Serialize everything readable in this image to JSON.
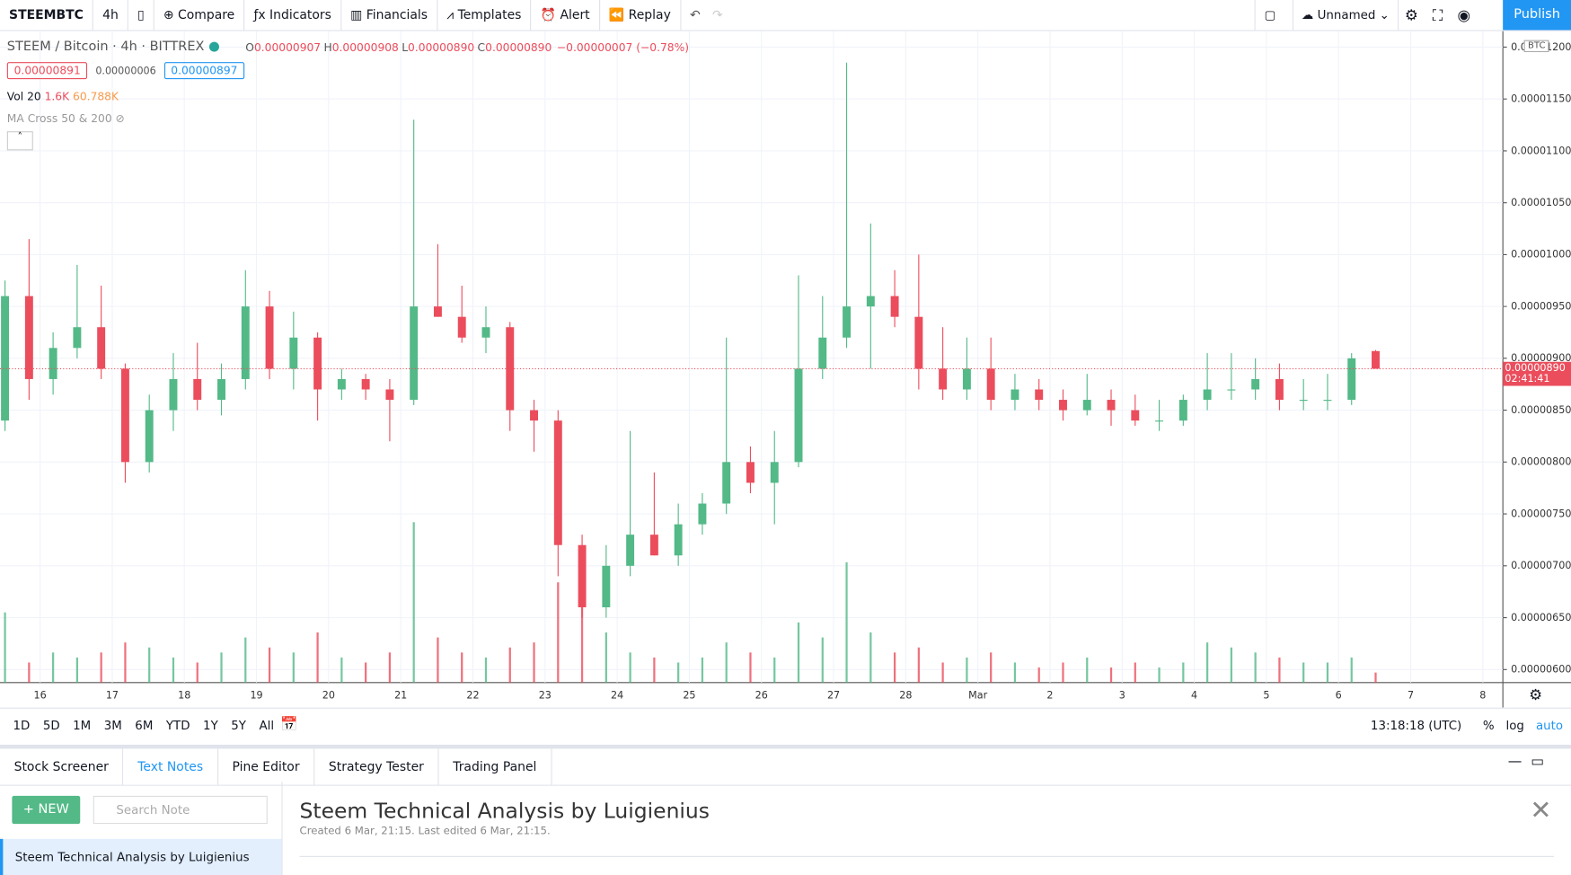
{
  "ui": {
    "toolbar": {
      "symbol": "STEEMBTC",
      "interval": "4h",
      "buttons": [
        "Compare",
        "Indicators",
        "Financials",
        "Templates",
        "Alert",
        "Replay"
      ],
      "layout": "Unnamed",
      "publish": "Publish"
    },
    "legend": {
      "title": "STEEM / Bitcoin · 4h · BITTREX",
      "ohlc": [
        {
          "k": "O",
          "v": "0.00000907"
        },
        {
          "k": "H",
          "v": "0.00000908"
        },
        {
          "k": "L",
          "v": "0.00000890"
        },
        {
          "k": "C",
          "v": "0.00000890"
        }
      ],
      "change": "−0.00000007 (−0.78%)",
      "bid": "0.00000891",
      "spread": "0.00000006",
      "ask": "0.00000897",
      "vol": "Vol 20",
      "vol_now": "1.6K",
      "vol_ma": "60.788K",
      "ma": "MA Cross 50 & 200"
    },
    "price_badge": {
      "price": "0.00000890",
      "countdown": "02:41:41",
      "currency": "BTC"
    },
    "ranges": [
      "1D",
      "5D",
      "1M",
      "3M",
      "6M",
      "YTD",
      "1Y",
      "5Y",
      "All"
    ],
    "clock": "13:18:18 (UTC)",
    "scale_opts": [
      "%",
      "log",
      "auto"
    ],
    "tabs": [
      "Stock Screener",
      "Text Notes",
      "Pine Editor",
      "Strategy Tester",
      "Trading Panel"
    ],
    "notes": {
      "new": "NEW",
      "search": "Search Note",
      "item": "Steem Technical Analysis by Luigienius",
      "title": "Steem Technical Analysis by Luigienius",
      "meta": "Created 6 Mar, 21:15. Last edited 6 Mar, 21:15."
    }
  },
  "chart_data": {
    "type": "candlestick",
    "up_color": "#53b987",
    "down_color": "#eb4d5c",
    "ylim": [
      6e-06,
      1.2e-05
    ],
    "yticks": [
      {
        "value": 1.2e-05,
        "label": "0.00001200"
      },
      {
        "value": 1.15e-05,
        "label": "0.00001150"
      },
      {
        "value": 1.1e-05,
        "label": "0.00001100"
      },
      {
        "value": 1.05e-05,
        "label": "0.00001050"
      },
      {
        "value": 1e-05,
        "label": "0.00001000"
      },
      {
        "value": 9.5e-06,
        "label": "0.00000950"
      },
      {
        "value": 9e-06,
        "label": "0.00000900"
      },
      {
        "value": 8.5e-06,
        "label": "0.00000850"
      },
      {
        "value": 8e-06,
        "label": "0.00000800"
      },
      {
        "value": 7.5e-06,
        "label": "0.00000750"
      },
      {
        "value": 7e-06,
        "label": "0.00000700"
      },
      {
        "value": 6.5e-06,
        "label": "0.00000650"
      },
      {
        "value": 6e-06,
        "label": "0.00000600"
      }
    ],
    "xticks": [
      "16",
      "17",
      "18",
      "19",
      "20",
      "21",
      "22",
      "23",
      "24",
      "25",
      "26",
      "27",
      "28",
      "Mar",
      "2",
      "3",
      "4",
      "5",
      "6",
      "7",
      "8"
    ],
    "ohlc": [
      [
        8.4e-06,
        9.75e-06,
        8.3e-06,
        9.6e-06
      ],
      [
        9.6e-06,
        1.015e-05,
        8.6e-06,
        8.8e-06
      ],
      [
        8.8e-06,
        9.25e-06,
        8.65e-06,
        9.1e-06
      ],
      [
        9.1e-06,
        9.9e-06,
        9e-06,
        9.3e-06
      ],
      [
        9.3e-06,
        9.7e-06,
        8.8e-06,
        8.9e-06
      ],
      [
        8.9e-06,
        8.95e-06,
        7.8e-06,
        8e-06
      ],
      [
        8e-06,
        8.65e-06,
        7.9e-06,
        8.5e-06
      ],
      [
        8.5e-06,
        9.05e-06,
        8.3e-06,
        8.8e-06
      ],
      [
        8.8e-06,
        9.15e-06,
        8.5e-06,
        8.6e-06
      ],
      [
        8.6e-06,
        8.95e-06,
        8.45e-06,
        8.8e-06
      ],
      [
        8.8e-06,
        9.85e-06,
        8.7e-06,
        9.5e-06
      ],
      [
        9.5e-06,
        9.65e-06,
        8.8e-06,
        8.9e-06
      ],
      [
        8.9e-06,
        9.45e-06,
        8.7e-06,
        9.2e-06
      ],
      [
        9.2e-06,
        9.25e-06,
        8.4e-06,
        8.7e-06
      ],
      [
        8.7e-06,
        8.9e-06,
        8.6e-06,
        8.8e-06
      ],
      [
        8.8e-06,
        8.85e-06,
        8.6e-06,
        8.7e-06
      ],
      [
        8.7e-06,
        8.8e-06,
        8.2e-06,
        8.6e-06
      ],
      [
        8.6e-06,
        1.13e-05,
        8.55e-06,
        9.5e-06
      ],
      [
        9.5e-06,
        1.01e-05,
        9.4e-06,
        9.4e-06
      ],
      [
        9.4e-06,
        9.7e-06,
        9.15e-06,
        9.2e-06
      ],
      [
        9.2e-06,
        9.5e-06,
        9.05e-06,
        9.3e-06
      ],
      [
        9.3e-06,
        9.35e-06,
        8.3e-06,
        8.5e-06
      ],
      [
        8.5e-06,
        8.6e-06,
        8.1e-06,
        8.4e-06
      ],
      [
        8.4e-06,
        8.5e-06,
        6.9e-06,
        7.2e-06
      ],
      [
        7.2e-06,
        7.3e-06,
        6.5e-06,
        6.6e-06
      ],
      [
        6.6e-06,
        7.2e-06,
        6.5e-06,
        7e-06
      ],
      [
        7e-06,
        8.3e-06,
        6.9e-06,
        7.3e-06
      ],
      [
        7.3e-06,
        7.9e-06,
        7.1e-06,
        7.1e-06
      ],
      [
        7.1e-06,
        7.6e-06,
        7e-06,
        7.4e-06
      ],
      [
        7.4e-06,
        7.7e-06,
        7.3e-06,
        7.6e-06
      ],
      [
        7.6e-06,
        9.2e-06,
        7.5e-06,
        8e-06
      ],
      [
        8e-06,
        8.15e-06,
        7.7e-06,
        7.8e-06
      ],
      [
        7.8e-06,
        8.3e-06,
        7.4e-06,
        8e-06
      ],
      [
        8e-06,
        9.8e-06,
        7.95e-06,
        8.9e-06
      ],
      [
        8.9e-06,
        9.6e-06,
        8.8e-06,
        9.2e-06
      ],
      [
        9.2e-06,
        1.185e-05,
        9.1e-06,
        9.5e-06
      ],
      [
        9.5e-06,
        1.03e-05,
        8.9e-06,
        9.6e-06
      ],
      [
        9.6e-06,
        9.85e-06,
        9.3e-06,
        9.4e-06
      ],
      [
        9.4e-06,
        1e-05,
        8.7e-06,
        8.9e-06
      ],
      [
        8.9e-06,
        9.3e-06,
        8.6e-06,
        8.7e-06
      ],
      [
        8.7e-06,
        9.2e-06,
        8.6e-06,
        8.9e-06
      ],
      [
        8.9e-06,
        9.2e-06,
        8.5e-06,
        8.6e-06
      ],
      [
        8.6e-06,
        8.85e-06,
        8.5e-06,
        8.7e-06
      ],
      [
        8.7e-06,
        8.8e-06,
        8.5e-06,
        8.6e-06
      ],
      [
        8.6e-06,
        8.7e-06,
        8.4e-06,
        8.5e-06
      ],
      [
        8.5e-06,
        8.85e-06,
        8.45e-06,
        8.6e-06
      ],
      [
        8.6e-06,
        8.7e-06,
        8.35e-06,
        8.5e-06
      ],
      [
        8.5e-06,
        8.65e-06,
        8.35e-06,
        8.4e-06
      ],
      [
        8.4e-06,
        8.6e-06,
        8.3e-06,
        8.4e-06
      ],
      [
        8.4e-06,
        8.65e-06,
        8.35e-06,
        8.6e-06
      ],
      [
        8.6e-06,
        9.05e-06,
        8.5e-06,
        8.7e-06
      ],
      [
        8.7e-06,
        9.05e-06,
        8.6e-06,
        8.7e-06
      ],
      [
        8.7e-06,
        9e-06,
        8.6e-06,
        8.8e-06
      ],
      [
        8.8e-06,
        8.95e-06,
        8.5e-06,
        8.6e-06
      ],
      [
        8.6e-06,
        8.8e-06,
        8.5e-06,
        8.6e-06
      ],
      [
        8.6e-06,
        8.85e-06,
        8.5e-06,
        8.6e-06
      ],
      [
        8.6e-06,
        9.05e-06,
        8.55e-06,
        9e-06
      ],
      [
        9.07e-06,
        9.08e-06,
        8.9e-06,
        8.9e-06
      ]
    ],
    "volume": [
      70,
      20,
      30,
      25,
      30,
      40,
      35,
      25,
      20,
      30,
      45,
      35,
      30,
      50,
      25,
      20,
      30,
      160,
      45,
      30,
      25,
      35,
      40,
      100,
      80,
      50,
      30,
      25,
      20,
      25,
      40,
      30,
      25,
      60,
      45,
      120,
      50,
      30,
      35,
      20,
      25,
      30,
      20,
      15,
      20,
      25,
      15,
      20,
      15,
      20,
      40,
      35,
      30,
      25,
      20,
      20,
      25,
      10
    ]
  }
}
